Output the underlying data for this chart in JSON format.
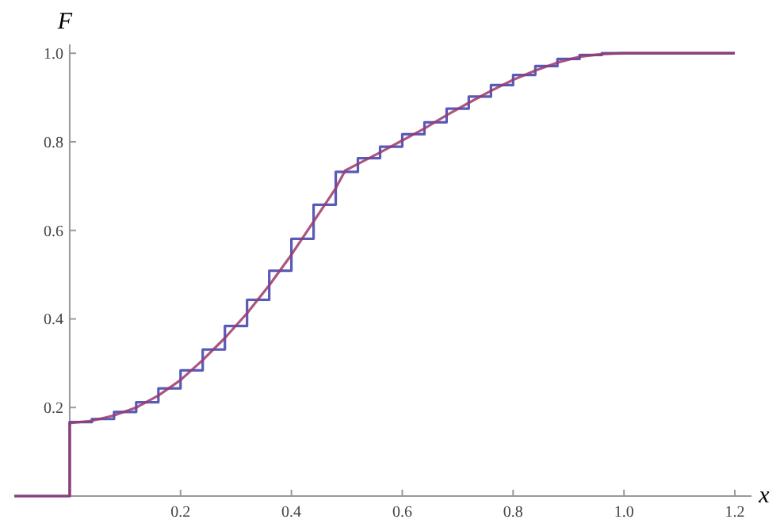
{
  "chart_data": {
    "type": "line",
    "xlabel": "x",
    "ylabel": "F",
    "xlim": [
      -0.1,
      1.23
    ],
    "ylim": [
      0,
      1.02
    ],
    "xticks": [
      0.2,
      0.4,
      0.6,
      0.8,
      {
        "value": 1,
        "label": "1.0"
      },
      1.2
    ],
    "yticks": [
      0.2,
      0.4,
      0.6,
      0.8,
      {
        "value": 1,
        "label": "1.0"
      }
    ],
    "grid": false,
    "marker": "none",
    "line_style": "solid",
    "series": [
      {
        "type": "step",
        "color": "#3d3dab",
        "x": [
          -0.1,
          0,
          0.04,
          0.08,
          0.12,
          0.16,
          0.2,
          0.24,
          0.28,
          0.32,
          0.36,
          0.4,
          0.44,
          0.48,
          0.52,
          0.56,
          0.6,
          0.64,
          0.68,
          0.72,
          0.76,
          0.8,
          0.84,
          0.88,
          0.92,
          0.96,
          1.2
        ],
        "values": [
          0,
          0.167,
          0.174,
          0.19,
          0.212,
          0.243,
          0.284,
          0.331,
          0.384,
          0.443,
          0.509,
          0.581,
          0.658,
          0.732,
          0.763,
          0.789,
          0.817,
          0.844,
          0.875,
          0.902,
          0.928,
          0.951,
          0.971,
          0.987,
          0.996,
          1.0,
          1.0
        ]
      },
      {
        "color": "#9a3a6c",
        "x": [
          -0.1,
          0,
          0,
          0.04,
          0.08,
          0.12,
          0.16,
          0.2,
          0.24,
          0.28,
          0.32,
          0.36,
          0.4,
          0.44,
          0.48,
          0.497,
          0.52,
          0.56,
          0.6,
          0.64,
          0.68,
          0.72,
          0.76,
          0.8,
          0.84,
          0.88,
          0.92,
          0.96,
          1.0,
          1.2
        ],
        "values": [
          0,
          0,
          0.165,
          0.17,
          0.182,
          0.2,
          0.227,
          0.262,
          0.307,
          0.357,
          0.413,
          0.476,
          0.545,
          0.62,
          0.695,
          0.735,
          0.75,
          0.776,
          0.803,
          0.83,
          0.86,
          0.888,
          0.915,
          0.94,
          0.961,
          0.979,
          0.992,
          0.998,
          1.0,
          1.0
        ]
      }
    ]
  }
}
